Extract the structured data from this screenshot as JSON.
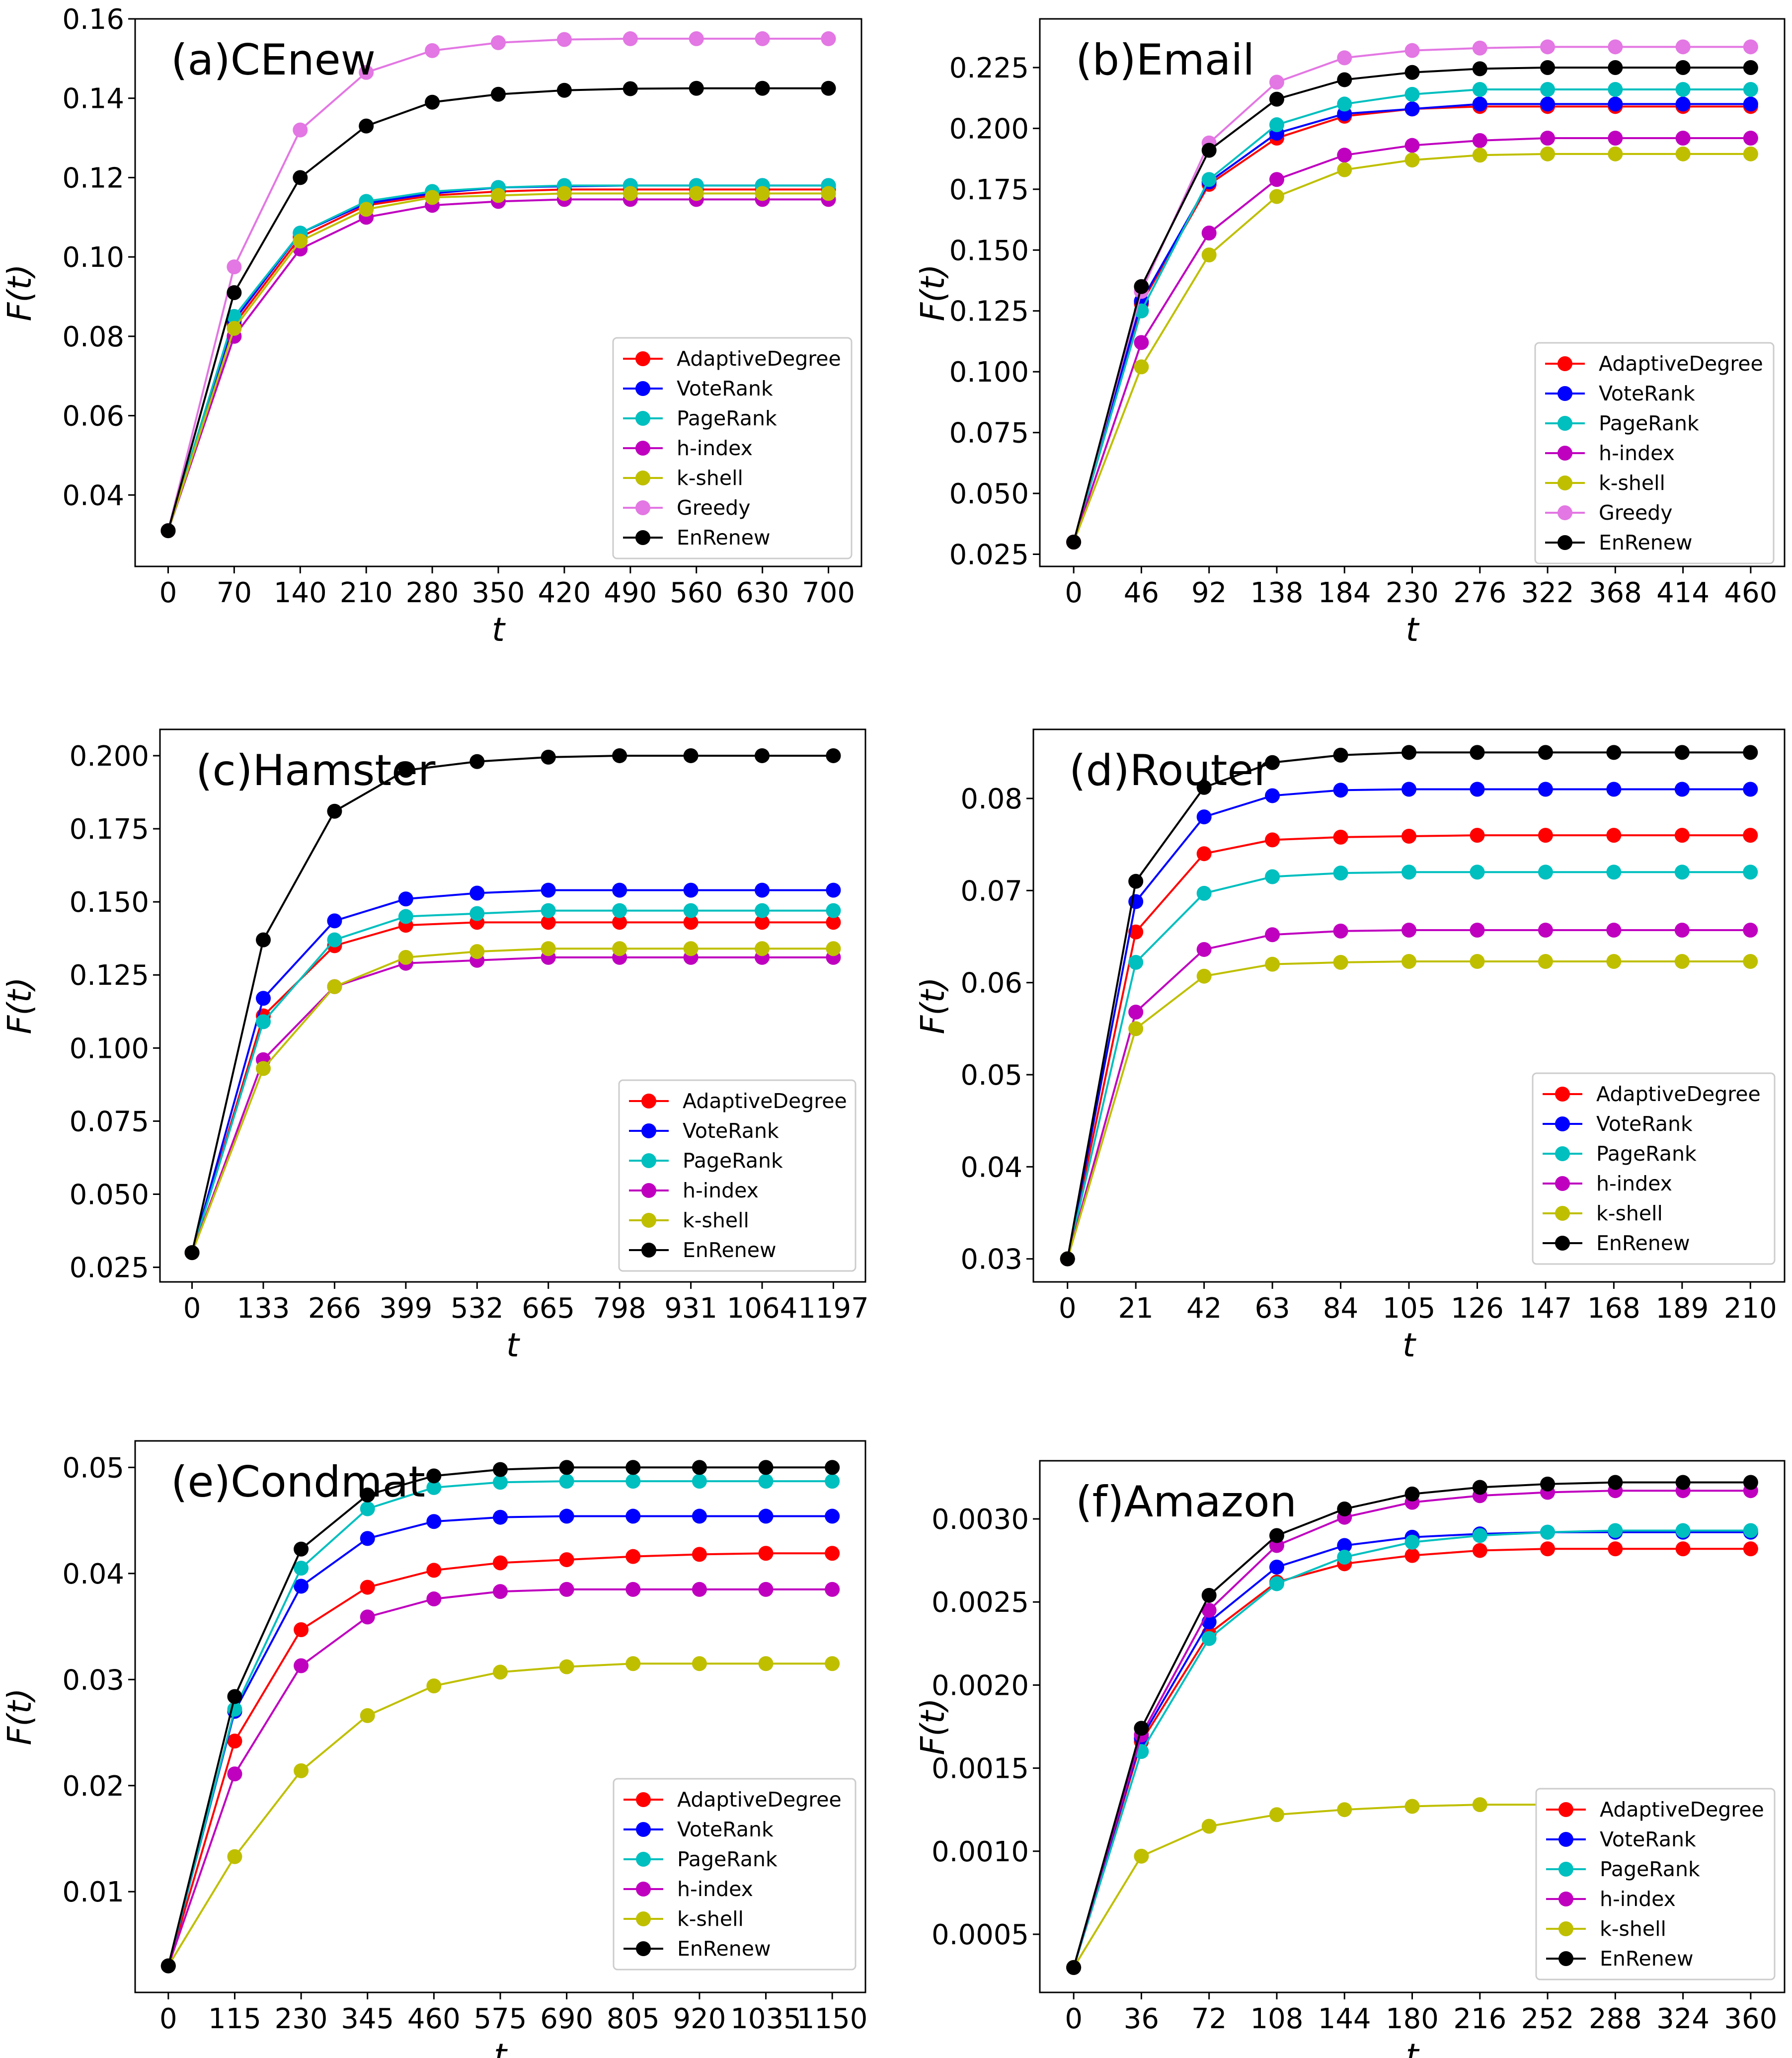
{
  "series_colors": {
    "AdaptiveDegree": "#ff0000",
    "VoteRank": "#0000ff",
    "PageRank": "#00bfbf",
    "h-index": "#bf00bf",
    "k-shell": "#bfbf00",
    "Greedy": "#e377e3",
    "EnRenew": "#000000"
  },
  "chart_data": [
    {
      "type": "line",
      "title": "(a)CEnew",
      "xlabel": "t",
      "ylabel": "F(t)",
      "x": [
        0,
        70,
        140,
        210,
        280,
        350,
        420,
        490,
        560,
        630,
        700
      ],
      "xticks": [
        "0",
        "70",
        "140",
        "210",
        "280",
        "350",
        "420",
        "490",
        "560",
        "630",
        "700"
      ],
      "ylim": [
        0.022,
        0.16
      ],
      "yticks": [
        "0.04",
        "0.06",
        "0.08",
        "0.10",
        "0.12",
        "0.14",
        "0.16"
      ],
      "ytick_values": [
        0.04,
        0.06,
        0.08,
        0.1,
        0.12,
        0.14,
        0.16
      ],
      "legend_position": "lower right",
      "series": [
        {
          "name": "AdaptiveDegree",
          "values": [
            0.031,
            0.083,
            0.105,
            0.113,
            0.1155,
            0.1165,
            0.117,
            0.117,
            0.117,
            0.117,
            0.117
          ]
        },
        {
          "name": "VoteRank",
          "values": [
            0.031,
            0.084,
            0.106,
            0.1135,
            0.116,
            0.1175,
            0.1178,
            0.118,
            0.118,
            0.118,
            0.118
          ]
        },
        {
          "name": "PageRank",
          "values": [
            0.031,
            0.085,
            0.106,
            0.114,
            0.1165,
            0.1175,
            0.118,
            0.118,
            0.118,
            0.118,
            0.118
          ]
        },
        {
          "name": "h-index",
          "values": [
            0.031,
            0.08,
            0.102,
            0.11,
            0.113,
            0.114,
            0.1145,
            0.1145,
            0.1145,
            0.1145,
            0.1145
          ]
        },
        {
          "name": "k-shell",
          "values": [
            0.031,
            0.082,
            0.104,
            0.112,
            0.115,
            0.1155,
            0.116,
            0.116,
            0.116,
            0.116,
            0.116
          ]
        },
        {
          "name": "Greedy",
          "values": [
            0.031,
            0.0975,
            0.132,
            0.1465,
            0.152,
            0.154,
            0.1548,
            0.155,
            0.155,
            0.155,
            0.155
          ]
        },
        {
          "name": "EnRenew",
          "values": [
            0.031,
            0.091,
            0.12,
            0.133,
            0.139,
            0.141,
            0.142,
            0.1424,
            0.1425,
            0.1425,
            0.1425
          ]
        }
      ]
    },
    {
      "type": "line",
      "title": "(b)Email",
      "xlabel": "t",
      "ylabel": "F(t)",
      "x": [
        0,
        46,
        92,
        138,
        184,
        230,
        276,
        322,
        368,
        414,
        460
      ],
      "xticks": [
        "0",
        "46",
        "92",
        "138",
        "184",
        "230",
        "276",
        "322",
        "368",
        "414",
        "460"
      ],
      "ylim": [
        0.02,
        0.245
      ],
      "yticks": [
        "0.025",
        "0.050",
        "0.075",
        "0.100",
        "0.125",
        "0.150",
        "0.175",
        "0.200",
        "0.225"
      ],
      "ytick_values": [
        0.025,
        0.05,
        0.075,
        0.1,
        0.125,
        0.15,
        0.175,
        0.2,
        0.225
      ],
      "legend_position": "lower right",
      "series": [
        {
          "name": "AdaptiveDegree",
          "values": [
            0.03,
            0.128,
            0.177,
            0.196,
            0.205,
            0.208,
            0.209,
            0.209,
            0.209,
            0.209,
            0.209
          ]
        },
        {
          "name": "VoteRank",
          "values": [
            0.03,
            0.129,
            0.178,
            0.198,
            0.206,
            0.208,
            0.21,
            0.21,
            0.21,
            0.21,
            0.21
          ]
        },
        {
          "name": "PageRank",
          "values": [
            0.03,
            0.125,
            0.179,
            0.2015,
            0.21,
            0.214,
            0.216,
            0.216,
            0.216,
            0.216,
            0.216
          ]
        },
        {
          "name": "h-index",
          "values": [
            0.03,
            0.112,
            0.157,
            0.179,
            0.189,
            0.193,
            0.195,
            0.196,
            0.196,
            0.196,
            0.196
          ]
        },
        {
          "name": "k-shell",
          "values": [
            0.03,
            0.102,
            0.148,
            0.172,
            0.183,
            0.187,
            0.189,
            0.1895,
            0.1895,
            0.1895,
            0.1895
          ]
        },
        {
          "name": "Greedy",
          "values": [
            0.03,
            0.133,
            0.194,
            0.219,
            0.229,
            0.232,
            0.233,
            0.2335,
            0.2335,
            0.2335,
            0.2335
          ]
        },
        {
          "name": "EnRenew",
          "values": [
            0.03,
            0.135,
            0.191,
            0.212,
            0.22,
            0.223,
            0.2245,
            0.225,
            0.225,
            0.225,
            0.225
          ]
        }
      ]
    },
    {
      "type": "line",
      "title": "(c)Hamster",
      "xlabel": "t",
      "ylabel": "F(t)",
      "x": [
        0,
        133,
        266,
        399,
        532,
        665,
        798,
        931,
        1064,
        1197
      ],
      "xticks": [
        "0",
        "133",
        "266",
        "399",
        "532",
        "665",
        "798",
        "931",
        "1064",
        "1197"
      ],
      "ylim": [
        0.02,
        0.209
      ],
      "yticks": [
        "0.025",
        "0.050",
        "0.075",
        "0.100",
        "0.125",
        "0.150",
        "0.175",
        "0.200"
      ],
      "ytick_values": [
        0.025,
        0.05,
        0.075,
        0.1,
        0.125,
        0.15,
        0.175,
        0.2
      ],
      "legend_position": "lower right",
      "series": [
        {
          "name": "AdaptiveDegree",
          "values": [
            0.03,
            0.111,
            0.135,
            0.142,
            0.143,
            0.143,
            0.143,
            0.143,
            0.143,
            0.143
          ]
        },
        {
          "name": "VoteRank",
          "values": [
            0.03,
            0.117,
            0.1435,
            0.151,
            0.153,
            0.154,
            0.154,
            0.154,
            0.154,
            0.154
          ]
        },
        {
          "name": "PageRank",
          "values": [
            0.03,
            0.109,
            0.137,
            0.145,
            0.146,
            0.147,
            0.147,
            0.147,
            0.147,
            0.147
          ]
        },
        {
          "name": "h-index",
          "values": [
            0.03,
            0.096,
            0.121,
            0.129,
            0.13,
            0.131,
            0.131,
            0.131,
            0.131,
            0.131
          ]
        },
        {
          "name": "k-shell",
          "values": [
            0.03,
            0.093,
            0.121,
            0.131,
            0.133,
            0.134,
            0.134,
            0.134,
            0.134,
            0.134
          ]
        },
        {
          "name": "EnRenew",
          "values": [
            0.03,
            0.137,
            0.181,
            0.195,
            0.198,
            0.1995,
            0.2,
            0.2,
            0.2,
            0.2
          ]
        }
      ]
    },
    {
      "type": "line",
      "title": "(d)Router",
      "xlabel": "t",
      "ylabel": "F(t)",
      "x": [
        0,
        21,
        42,
        63,
        84,
        105,
        126,
        147,
        168,
        189,
        210
      ],
      "xticks": [
        "0",
        "21",
        "42",
        "63",
        "84",
        "105",
        "126",
        "147",
        "168",
        "189",
        "210"
      ],
      "ylim": [
        0.0275,
        0.0875
      ],
      "yticks": [
        "0.03",
        "0.04",
        "0.05",
        "0.06",
        "0.07",
        "0.08"
      ],
      "ytick_values": [
        0.03,
        0.04,
        0.05,
        0.06,
        0.07,
        0.08
      ],
      "legend_position": "lower right",
      "series": [
        {
          "name": "AdaptiveDegree",
          "values": [
            0.03,
            0.0655,
            0.074,
            0.0755,
            0.0758,
            0.0759,
            0.076,
            0.076,
            0.076,
            0.076,
            0.076
          ]
        },
        {
          "name": "VoteRank",
          "values": [
            0.03,
            0.0688,
            0.078,
            0.0803,
            0.0809,
            0.081,
            0.081,
            0.081,
            0.081,
            0.081,
            0.081
          ]
        },
        {
          "name": "PageRank",
          "values": [
            0.03,
            0.0622,
            0.0697,
            0.0715,
            0.0719,
            0.072,
            0.072,
            0.072,
            0.072,
            0.072,
            0.072
          ]
        },
        {
          "name": "h-index",
          "values": [
            0.03,
            0.0568,
            0.0636,
            0.0652,
            0.0656,
            0.0657,
            0.0657,
            0.0657,
            0.0657,
            0.0657,
            0.0657
          ]
        },
        {
          "name": "k-shell",
          "values": [
            0.03,
            0.055,
            0.0607,
            0.062,
            0.0622,
            0.0623,
            0.0623,
            0.0623,
            0.0623,
            0.0623,
            0.0623
          ]
        },
        {
          "name": "EnRenew",
          "values": [
            0.03,
            0.071,
            0.0812,
            0.0839,
            0.0847,
            0.085,
            0.085,
            0.085,
            0.085,
            0.085,
            0.085
          ]
        }
      ]
    },
    {
      "type": "line",
      "title": "(e)Condmat",
      "xlabel": "t",
      "ylabel": "F(t)",
      "x": [
        0,
        115,
        230,
        345,
        460,
        575,
        690,
        805,
        920,
        1035,
        1150
      ],
      "xticks": [
        "0",
        "115",
        "230",
        "345",
        "460",
        "575",
        "690",
        "805",
        "920",
        "1035",
        "1150"
      ],
      "ylim": [
        0.0005,
        0.0525
      ],
      "yticks": [
        "0.01",
        "0.02",
        "0.03",
        "0.04",
        "0.05"
      ],
      "ytick_values": [
        0.01,
        0.02,
        0.03,
        0.04,
        0.05
      ],
      "legend_position": "lower right",
      "series": [
        {
          "name": "AdaptiveDegree",
          "values": [
            0.003,
            0.0242,
            0.0347,
            0.0387,
            0.0403,
            0.041,
            0.0413,
            0.0416,
            0.0418,
            0.0419,
            0.0419
          ]
        },
        {
          "name": "VoteRank",
          "values": [
            0.003,
            0.027,
            0.0388,
            0.0433,
            0.0449,
            0.0453,
            0.0454,
            0.0454,
            0.0454,
            0.0454,
            0.0454
          ]
        },
        {
          "name": "PageRank",
          "values": [
            0.003,
            0.0272,
            0.0405,
            0.0461,
            0.0481,
            0.0486,
            0.0487,
            0.0487,
            0.0487,
            0.0487,
            0.0487
          ]
        },
        {
          "name": "h-index",
          "values": [
            0.003,
            0.0211,
            0.0313,
            0.0359,
            0.0376,
            0.0383,
            0.0385,
            0.0385,
            0.0385,
            0.0385,
            0.0385
          ]
        },
        {
          "name": "k-shell",
          "values": [
            0.003,
            0.0133,
            0.0214,
            0.0266,
            0.0294,
            0.0307,
            0.0312,
            0.0315,
            0.0315,
            0.0315,
            0.0315
          ]
        },
        {
          "name": "EnRenew",
          "values": [
            0.003,
            0.0284,
            0.0423,
            0.0474,
            0.0492,
            0.0498,
            0.05,
            0.05,
            0.05,
            0.05,
            0.05
          ]
        }
      ]
    },
    {
      "type": "line",
      "title": "(f)Amazon",
      "xlabel": "t",
      "ylabel": "F(t)",
      "x": [
        0,
        36,
        72,
        108,
        144,
        180,
        216,
        252,
        288,
        324,
        360
      ],
      "xticks": [
        "0",
        "36",
        "72",
        "108",
        "144",
        "180",
        "216",
        "252",
        "288",
        "324",
        "360"
      ],
      "ylim": [
        0.00015,
        0.00335
      ],
      "yticks": [
        "0.0005",
        "0.0010",
        "0.0015",
        "0.0020",
        "0.0025",
        "0.0030"
      ],
      "ytick_values": [
        0.0005,
        0.001,
        0.0015,
        0.002,
        0.0025,
        0.003
      ],
      "legend_position": "lower right",
      "series": [
        {
          "name": "AdaptiveDegree",
          "values": [
            0.0003,
            0.00166,
            0.00231,
            0.00262,
            0.00273,
            0.00278,
            0.00281,
            0.00282,
            0.00282,
            0.00282,
            0.00282
          ]
        },
        {
          "name": "VoteRank",
          "values": [
            0.0003,
            0.00168,
            0.00238,
            0.00271,
            0.00284,
            0.00289,
            0.00291,
            0.00292,
            0.00292,
            0.00292,
            0.00292
          ]
        },
        {
          "name": "PageRank",
          "values": [
            0.0003,
            0.0016,
            0.00228,
            0.00261,
            0.00277,
            0.00286,
            0.0029,
            0.00292,
            0.00293,
            0.00293,
            0.00293
          ]
        },
        {
          "name": "h-index",
          "values": [
            0.0003,
            0.0017,
            0.00245,
            0.00284,
            0.00301,
            0.0031,
            0.00314,
            0.00316,
            0.00317,
            0.00317,
            0.00317
          ]
        },
        {
          "name": "k-shell",
          "values": [
            0.0003,
            0.00097,
            0.00115,
            0.00122,
            0.00125,
            0.00127,
            0.00128,
            0.00128,
            0.00128,
            0.00128,
            0.00128
          ]
        },
        {
          "name": "EnRenew",
          "values": [
            0.0003,
            0.00174,
            0.00254,
            0.0029,
            0.00306,
            0.00315,
            0.00319,
            0.00321,
            0.00322,
            0.00322,
            0.00322
          ]
        }
      ]
    }
  ]
}
